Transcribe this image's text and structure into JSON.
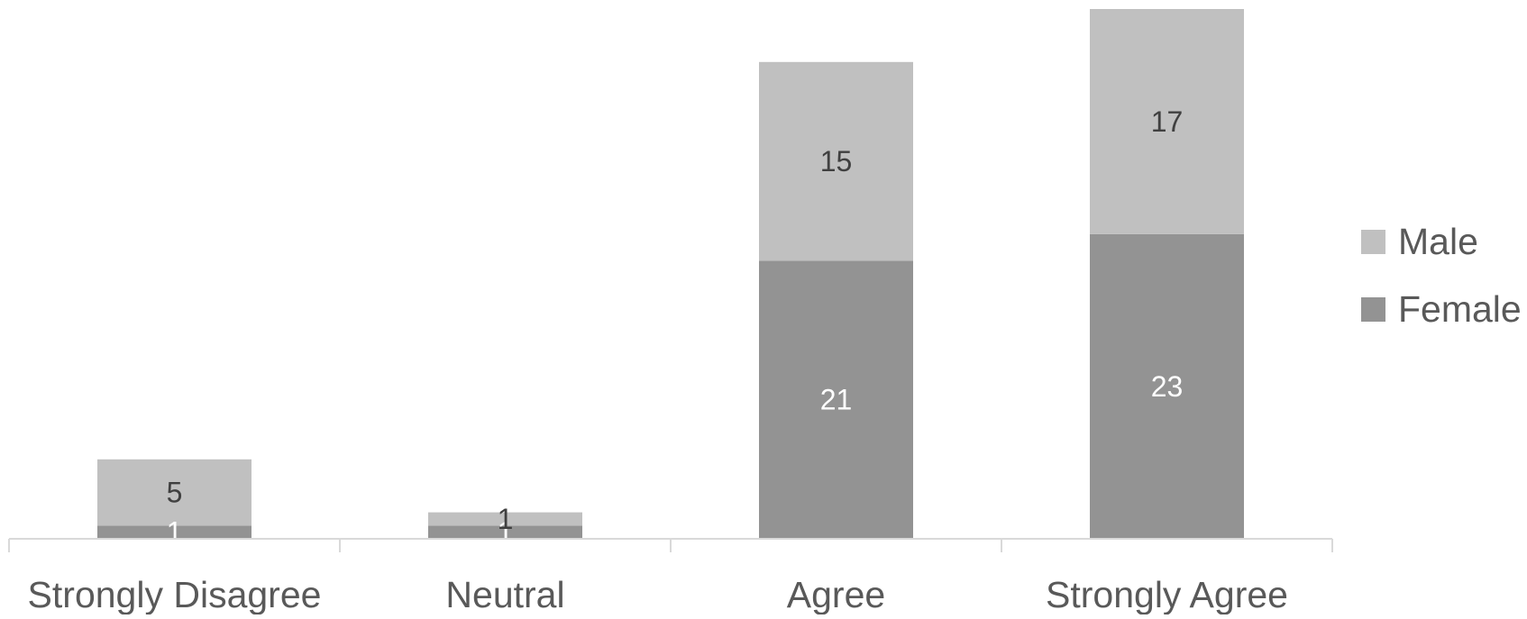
{
  "chart_data": {
    "type": "bar",
    "stacked": true,
    "categories": [
      "Strongly Disagree",
      "Neutral",
      "Agree",
      "Strongly Agree"
    ],
    "series": [
      {
        "name": "Female",
        "values": [
          1,
          1,
          21,
          23
        ],
        "color": "#939393",
        "label_color": "#ffffff"
      },
      {
        "name": "Male",
        "values": [
          5,
          1,
          15,
          17
        ],
        "color": "#c0c0c0",
        "label_color": "#404040"
      }
    ],
    "ylim": [
      0,
      40
    ],
    "grid": false,
    "legend": {
      "position": "right",
      "order": [
        "Male",
        "Female"
      ]
    },
    "axis_color": "#d9d9d9",
    "text_color": "#595959"
  }
}
